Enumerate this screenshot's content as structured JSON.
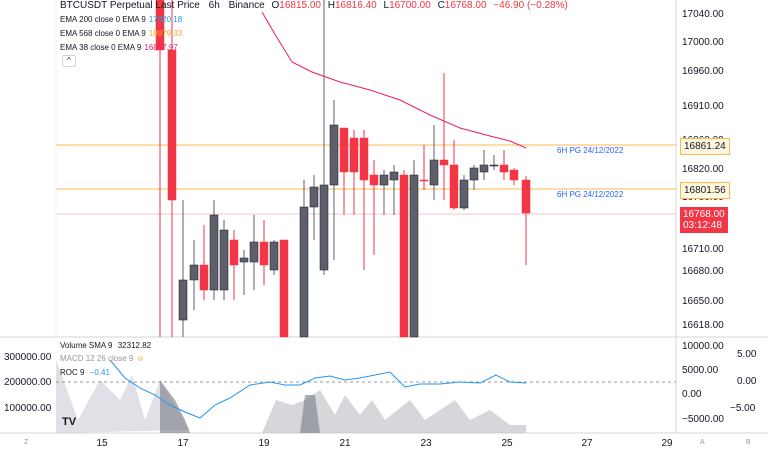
{
  "header": {
    "symbol": "BTCUSDT Perpetual Last Price",
    "interval": "6h",
    "exchange": "Binance",
    "o_label": "O",
    "o_value": "16815.00",
    "h_label": "H",
    "h_value": "16816.40",
    "l_label": "L",
    "l_value": "16700.00",
    "c_label": "C",
    "c_value": "16768.00",
    "change": "−46.90 (−0.28%)"
  },
  "indicators": [
    {
      "label": "EMA 200 close 0 EMA 9",
      "value": "17320.18",
      "color": "#2196f3"
    },
    {
      "label": "EMA 568 close 0 EMA 9",
      "value": "18979.33",
      "color": "#ffeb3b"
    },
    {
      "label": "EMA 38 close 0 EMA 9",
      "value": "16857.97",
      "color": "#e91e63"
    }
  ],
  "price_axis": [
    "17040.00",
    "17000.00",
    "16960.00",
    "16910.00",
    "16860.00",
    "16820.00",
    "16780.00",
    "16740.00",
    "16710.00",
    "16680.00",
    "16650.00",
    "16618.00"
  ],
  "price_tags": [
    {
      "value": "16861.24",
      "bg": "#ffffff",
      "color": "#131722",
      "border": "#ffb74d"
    },
    {
      "value": "16801.56",
      "bg": "#ffffff",
      "color": "#131722",
      "border": "#ffb74d"
    },
    {
      "value": "16768.00",
      "sub": "03:12:48",
      "bg": "#f23645",
      "color": "#ffffff"
    }
  ],
  "hline_labels": [
    "6H PG 24/12/2022",
    "6H PG 24/12/2022"
  ],
  "lower_pane": {
    "volume_label": "Volume SMA 9",
    "volume_value": "32312.82",
    "macd_label": "MACD 12 26 close 9",
    "roc_label": "ROC 9",
    "roc_value": "−0.41",
    "left_axis": [
      "300000.00",
      "200000.00",
      "100000.00"
    ],
    "mid_axis": [
      "10000.00",
      "5000.00",
      "0.00",
      "−5000.00"
    ],
    "right_axis": [
      "5.00",
      "0.00",
      "−5.00"
    ]
  },
  "x_ticks": [
    "15",
    "17",
    "19",
    "21",
    "23",
    "25",
    "27",
    "29"
  ],
  "corner_labels": {
    "left": "Z",
    "right_a": "A",
    "right_b": "B"
  },
  "logo": "TV",
  "collapse_glyph": "^",
  "colors": {
    "up": "#5d606b",
    "down": "#f23645",
    "ema": "#e91e63",
    "roc": "#2196f3",
    "pg_line": "#ffb74d"
  }
}
